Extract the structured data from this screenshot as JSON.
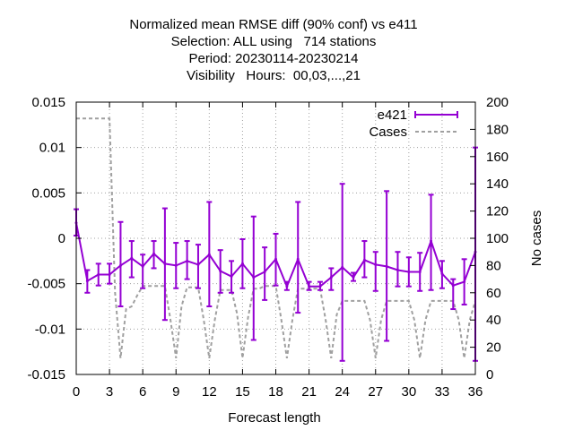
{
  "chart_data": {
    "type": "line",
    "title_lines": [
      "Normalized mean RMSE diff (90% conf) vs e411",
      "Selection: ALL using   714 stations",
      "Period: 20230114-20230214",
      "Visibility   Hours:  00,03,...,21"
    ],
    "xlabel": "Forecast length",
    "ylabel": "",
    "y2label": "No cases",
    "xlim": [
      0,
      36
    ],
    "ylim": [
      -0.015,
      0.015
    ],
    "y2lim": [
      0,
      200
    ],
    "x_ticks": [
      0,
      3,
      6,
      9,
      12,
      15,
      18,
      21,
      24,
      27,
      30,
      33,
      36
    ],
    "y_ticks": [
      -0.015,
      -0.01,
      -0.005,
      0,
      0.005,
      0.01,
      0.015
    ],
    "y_tick_labels": [
      "-0.015",
      "-0.01",
      "-0.005",
      "0",
      "0.005",
      "0.01",
      "0.015"
    ],
    "y2_ticks": [
      0,
      20,
      40,
      60,
      80,
      100,
      120,
      140,
      160,
      180,
      200
    ],
    "grid": true,
    "legend_position": "top-right",
    "series": [
      {
        "name": "e421",
        "color": "#9400d3",
        "style": "errorbars",
        "x": [
          0,
          1,
          2,
          3,
          4,
          5,
          6,
          7,
          8,
          9,
          10,
          11,
          12,
          13,
          14,
          15,
          16,
          17,
          18,
          19,
          20,
          21,
          22,
          23,
          24,
          25,
          26,
          27,
          28,
          29,
          30,
          31,
          32,
          33,
          34,
          35,
          36
        ],
        "y": [
          0.0017,
          -0.0047,
          -0.004,
          -0.004,
          -0.003,
          -0.0022,
          -0.0031,
          -0.0017,
          -0.0028,
          -0.003,
          -0.0025,
          -0.0029,
          -0.0018,
          -0.0036,
          -0.0042,
          -0.0028,
          -0.0043,
          -0.0037,
          -0.0023,
          -0.0053,
          -0.0023,
          -0.0053,
          -0.0053,
          -0.0043,
          -0.0032,
          -0.0043,
          -0.0024,
          -0.0029,
          -0.0031,
          -0.0035,
          -0.0037,
          -0.0037,
          -0.0003,
          -0.0039,
          -0.0052,
          -0.0048,
          -0.0015
        ],
        "y_low": [
          0.0003,
          -0.006,
          -0.0052,
          -0.005,
          -0.0075,
          -0.0043,
          -0.0055,
          -0.0033,
          -0.009,
          -0.0055,
          -0.0045,
          -0.0055,
          -0.0075,
          -0.006,
          -0.006,
          -0.0055,
          -0.0112,
          -0.0068,
          -0.0052,
          -0.0057,
          -0.0082,
          -0.0057,
          -0.0057,
          -0.0057,
          -0.0135,
          -0.0047,
          -0.0043,
          -0.0058,
          -0.0113,
          -0.0053,
          -0.0053,
          -0.0058,
          -0.0057,
          -0.0055,
          -0.0078,
          -0.0073,
          -0.0135
        ],
        "y_high": [
          0.0032,
          -0.0035,
          -0.0028,
          -0.0028,
          0.0018,
          -0.0003,
          -0.0018,
          -0.0003,
          0.0033,
          -0.0005,
          -0.0003,
          -0.0007,
          0.004,
          -0.0013,
          -0.0025,
          -0.0001,
          0.0024,
          -0.001,
          0.0005,
          -0.0048,
          0.004,
          -0.0048,
          -0.0048,
          -0.0033,
          0.006,
          -0.0038,
          -0.0003,
          -0.0015,
          0.0052,
          -0.0015,
          -0.0021,
          -0.0016,
          0.0048,
          -0.0025,
          -0.0045,
          -0.0023,
          0.01
        ]
      },
      {
        "name": "Cases",
        "color": "#a0a0a0",
        "style": "dashed",
        "axis": "y2",
        "x": [
          0,
          3,
          3.5,
          4,
          4.5,
          5,
          5.5,
          6,
          7,
          8,
          8.5,
          9,
          9.5,
          10,
          11,
          11.5,
          12,
          12.5,
          13,
          14,
          14.5,
          15,
          15.5,
          16,
          16.5,
          17,
          18,
          18.5,
          19,
          19.5,
          20,
          20.5,
          21,
          22,
          22.5,
          23,
          23.5,
          24,
          24.5,
          25,
          26,
          26.5,
          27,
          27.5,
          28,
          28.5,
          29,
          30,
          30.5,
          31,
          31.5,
          32,
          32.5,
          33,
          34,
          34.5,
          35,
          35.5,
          36
        ],
        "values": [
          188,
          188,
          60,
          12,
          48,
          50,
          58,
          65,
          65,
          65,
          40,
          12,
          50,
          64,
          64,
          40,
          12,
          40,
          62,
          62,
          45,
          12,
          42,
          63,
          63,
          65,
          65,
          40,
          12,
          40,
          63,
          63,
          63,
          63,
          40,
          12,
          44,
          54,
          54,
          54,
          54,
          40,
          12,
          40,
          54,
          54,
          54,
          54,
          40,
          12,
          40,
          54,
          54,
          54,
          54,
          40,
          12,
          40,
          54
        ]
      }
    ]
  }
}
